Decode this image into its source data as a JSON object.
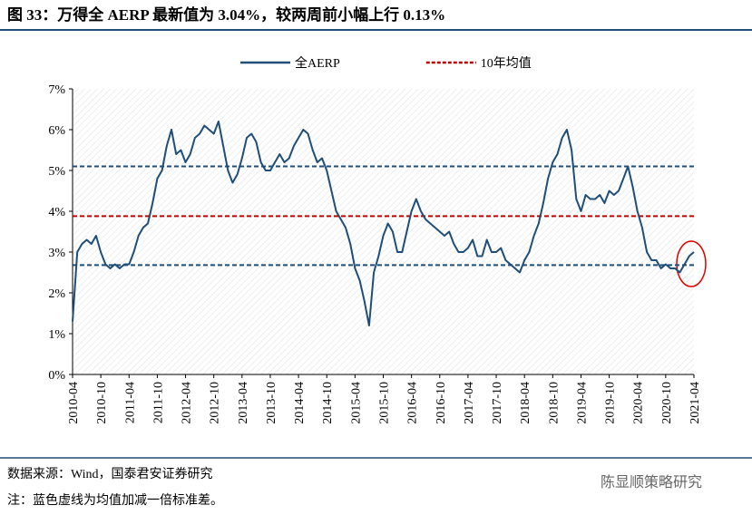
{
  "title": "图 33：万得全 AERP 最新值为 3.04%，较两周前小幅上行 0.13%",
  "source": "数据来源：Wind，国泰君安证券研究",
  "note": "注：蓝色虚线为均值加减一倍标准差。",
  "watermark": "陈显顺策略研究",
  "chart_data": {
    "type": "line",
    "categories": [
      "2010-04",
      null,
      null,
      null,
      null,
      null,
      "2010-10",
      null,
      null,
      null,
      null,
      null,
      "2011-04",
      null,
      null,
      null,
      null,
      null,
      "2011-10",
      null,
      null,
      null,
      null,
      null,
      "2012-04",
      null,
      null,
      null,
      null,
      null,
      "2012-10",
      null,
      null,
      null,
      null,
      null,
      "2013-04",
      null,
      null,
      null,
      null,
      null,
      "2013-10",
      null,
      null,
      null,
      null,
      null,
      "2014-04",
      null,
      null,
      null,
      null,
      null,
      "2014-10",
      null,
      null,
      null,
      null,
      null,
      "2015-04",
      null,
      null,
      null,
      null,
      null,
      "2015-10",
      null,
      null,
      null,
      null,
      null,
      "2016-04",
      null,
      null,
      null,
      null,
      null,
      "2016-10",
      null,
      null,
      null,
      null,
      null,
      "2017-04",
      null,
      null,
      null,
      null,
      null,
      "2017-10",
      null,
      null,
      null,
      null,
      null,
      "2018-04",
      null,
      null,
      null,
      null,
      null,
      "2018-10",
      null,
      null,
      null,
      null,
      null,
      "2019-04",
      null,
      null,
      null,
      null,
      null,
      "2019-10",
      null,
      null,
      null,
      null,
      null,
      "2020-04",
      null,
      null,
      null,
      null,
      null,
      "2020-10",
      null,
      null,
      null,
      null,
      null,
      "2021-04"
    ],
    "series": [
      {
        "name": "全AERP",
        "color": "#1f4e79",
        "values": [
          1.3,
          3.0,
          3.2,
          3.3,
          3.2,
          3.4,
          3.0,
          2.7,
          2.6,
          2.7,
          2.6,
          2.7,
          2.7,
          3.0,
          3.4,
          3.6,
          3.7,
          4.2,
          4.8,
          5.0,
          5.6,
          6.0,
          5.4,
          5.5,
          5.2,
          5.4,
          5.8,
          5.9,
          6.1,
          6.0,
          5.9,
          6.2,
          5.6,
          5.0,
          4.7,
          4.9,
          5.3,
          5.8,
          5.9,
          5.7,
          5.2,
          5.0,
          5.0,
          5.2,
          5.4,
          5.2,
          5.3,
          5.6,
          5.8,
          6.0,
          5.9,
          5.5,
          5.2,
          5.3,
          5.0,
          4.5,
          4.0,
          3.8,
          3.6,
          3.2,
          2.6,
          2.3,
          1.8,
          1.2,
          2.5,
          2.9,
          3.4,
          3.7,
          3.5,
          3.0,
          3.0,
          3.5,
          4.0,
          4.3,
          4.0,
          3.8,
          3.7,
          3.6,
          3.5,
          3.4,
          3.5,
          3.2,
          3.0,
          3.0,
          3.1,
          3.3,
          2.9,
          2.9,
          3.3,
          3.0,
          3.0,
          3.1,
          2.8,
          2.7,
          2.6,
          2.5,
          2.8,
          3.0,
          3.4,
          3.7,
          4.2,
          4.8,
          5.2,
          5.4,
          5.8,
          6.0,
          5.5,
          4.3,
          4.0,
          4.4,
          4.3,
          4.3,
          4.4,
          4.2,
          4.5,
          4.4,
          4.5,
          4.8,
          5.1,
          4.6,
          4.0,
          3.6,
          3.0,
          2.8,
          2.8,
          2.6,
          2.7,
          2.6,
          2.6,
          2.5,
          2.7,
          2.9,
          3.0
        ]
      }
    ],
    "reference_lines": [
      {
        "name": "10年均值",
        "value": 3.88,
        "color": "#c00000"
      },
      {
        "value": 5.1,
        "color": "#1f4e79"
      },
      {
        "value": 2.68,
        "color": "#1f4e79"
      }
    ],
    "ylim": [
      0,
      7
    ],
    "yticks": [
      {
        "value": 0,
        "label": "0%"
      },
      {
        "value": 1,
        "label": "1%"
      },
      {
        "value": 2,
        "label": "2%"
      },
      {
        "value": 3,
        "label": "3%"
      },
      {
        "value": 4,
        "label": "4%"
      },
      {
        "value": 5,
        "label": "5%"
      },
      {
        "value": 6,
        "label": "6%"
      },
      {
        "value": 7,
        "label": "7%"
      }
    ],
    "grid": false
  }
}
